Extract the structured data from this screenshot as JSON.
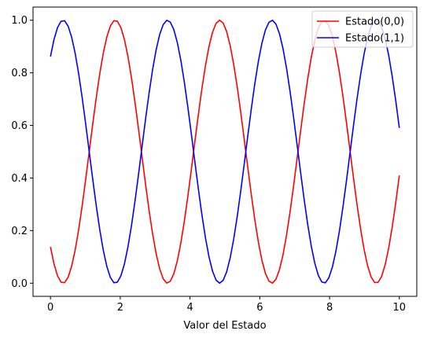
{
  "chart_data": {
    "type": "line",
    "title": "",
    "xlabel": "Valor del Estado",
    "ylabel": "",
    "xlim": [
      -0.5,
      10.5
    ],
    "ylim": [
      -0.05,
      1.05
    ],
    "xticks": [
      0,
      2,
      4,
      6,
      8,
      10
    ],
    "yticks": [
      0.0,
      0.2,
      0.4,
      0.6,
      0.8,
      1.0
    ],
    "xtick_labels": [
      "0",
      "2",
      "4",
      "6",
      "8",
      "10"
    ],
    "ytick_labels": [
      "0.0",
      "0.2",
      "0.4",
      "0.6",
      "0.8",
      "1.0"
    ],
    "grid": false,
    "legend_position": "top-right",
    "x_range": [
      0,
      10
    ],
    "n_points": 100,
    "series": [
      {
        "name": "Estado(0,0)",
        "color": "#ff0000",
        "formula": "cos^2(w*x + phi)",
        "w": 1.05,
        "phi": 1.19
      },
      {
        "name": "Estado(1,1)",
        "color": "#0000ff",
        "formula": "sin^2(w*x + phi)",
        "w": 1.05,
        "phi": 1.19
      }
    ]
  }
}
